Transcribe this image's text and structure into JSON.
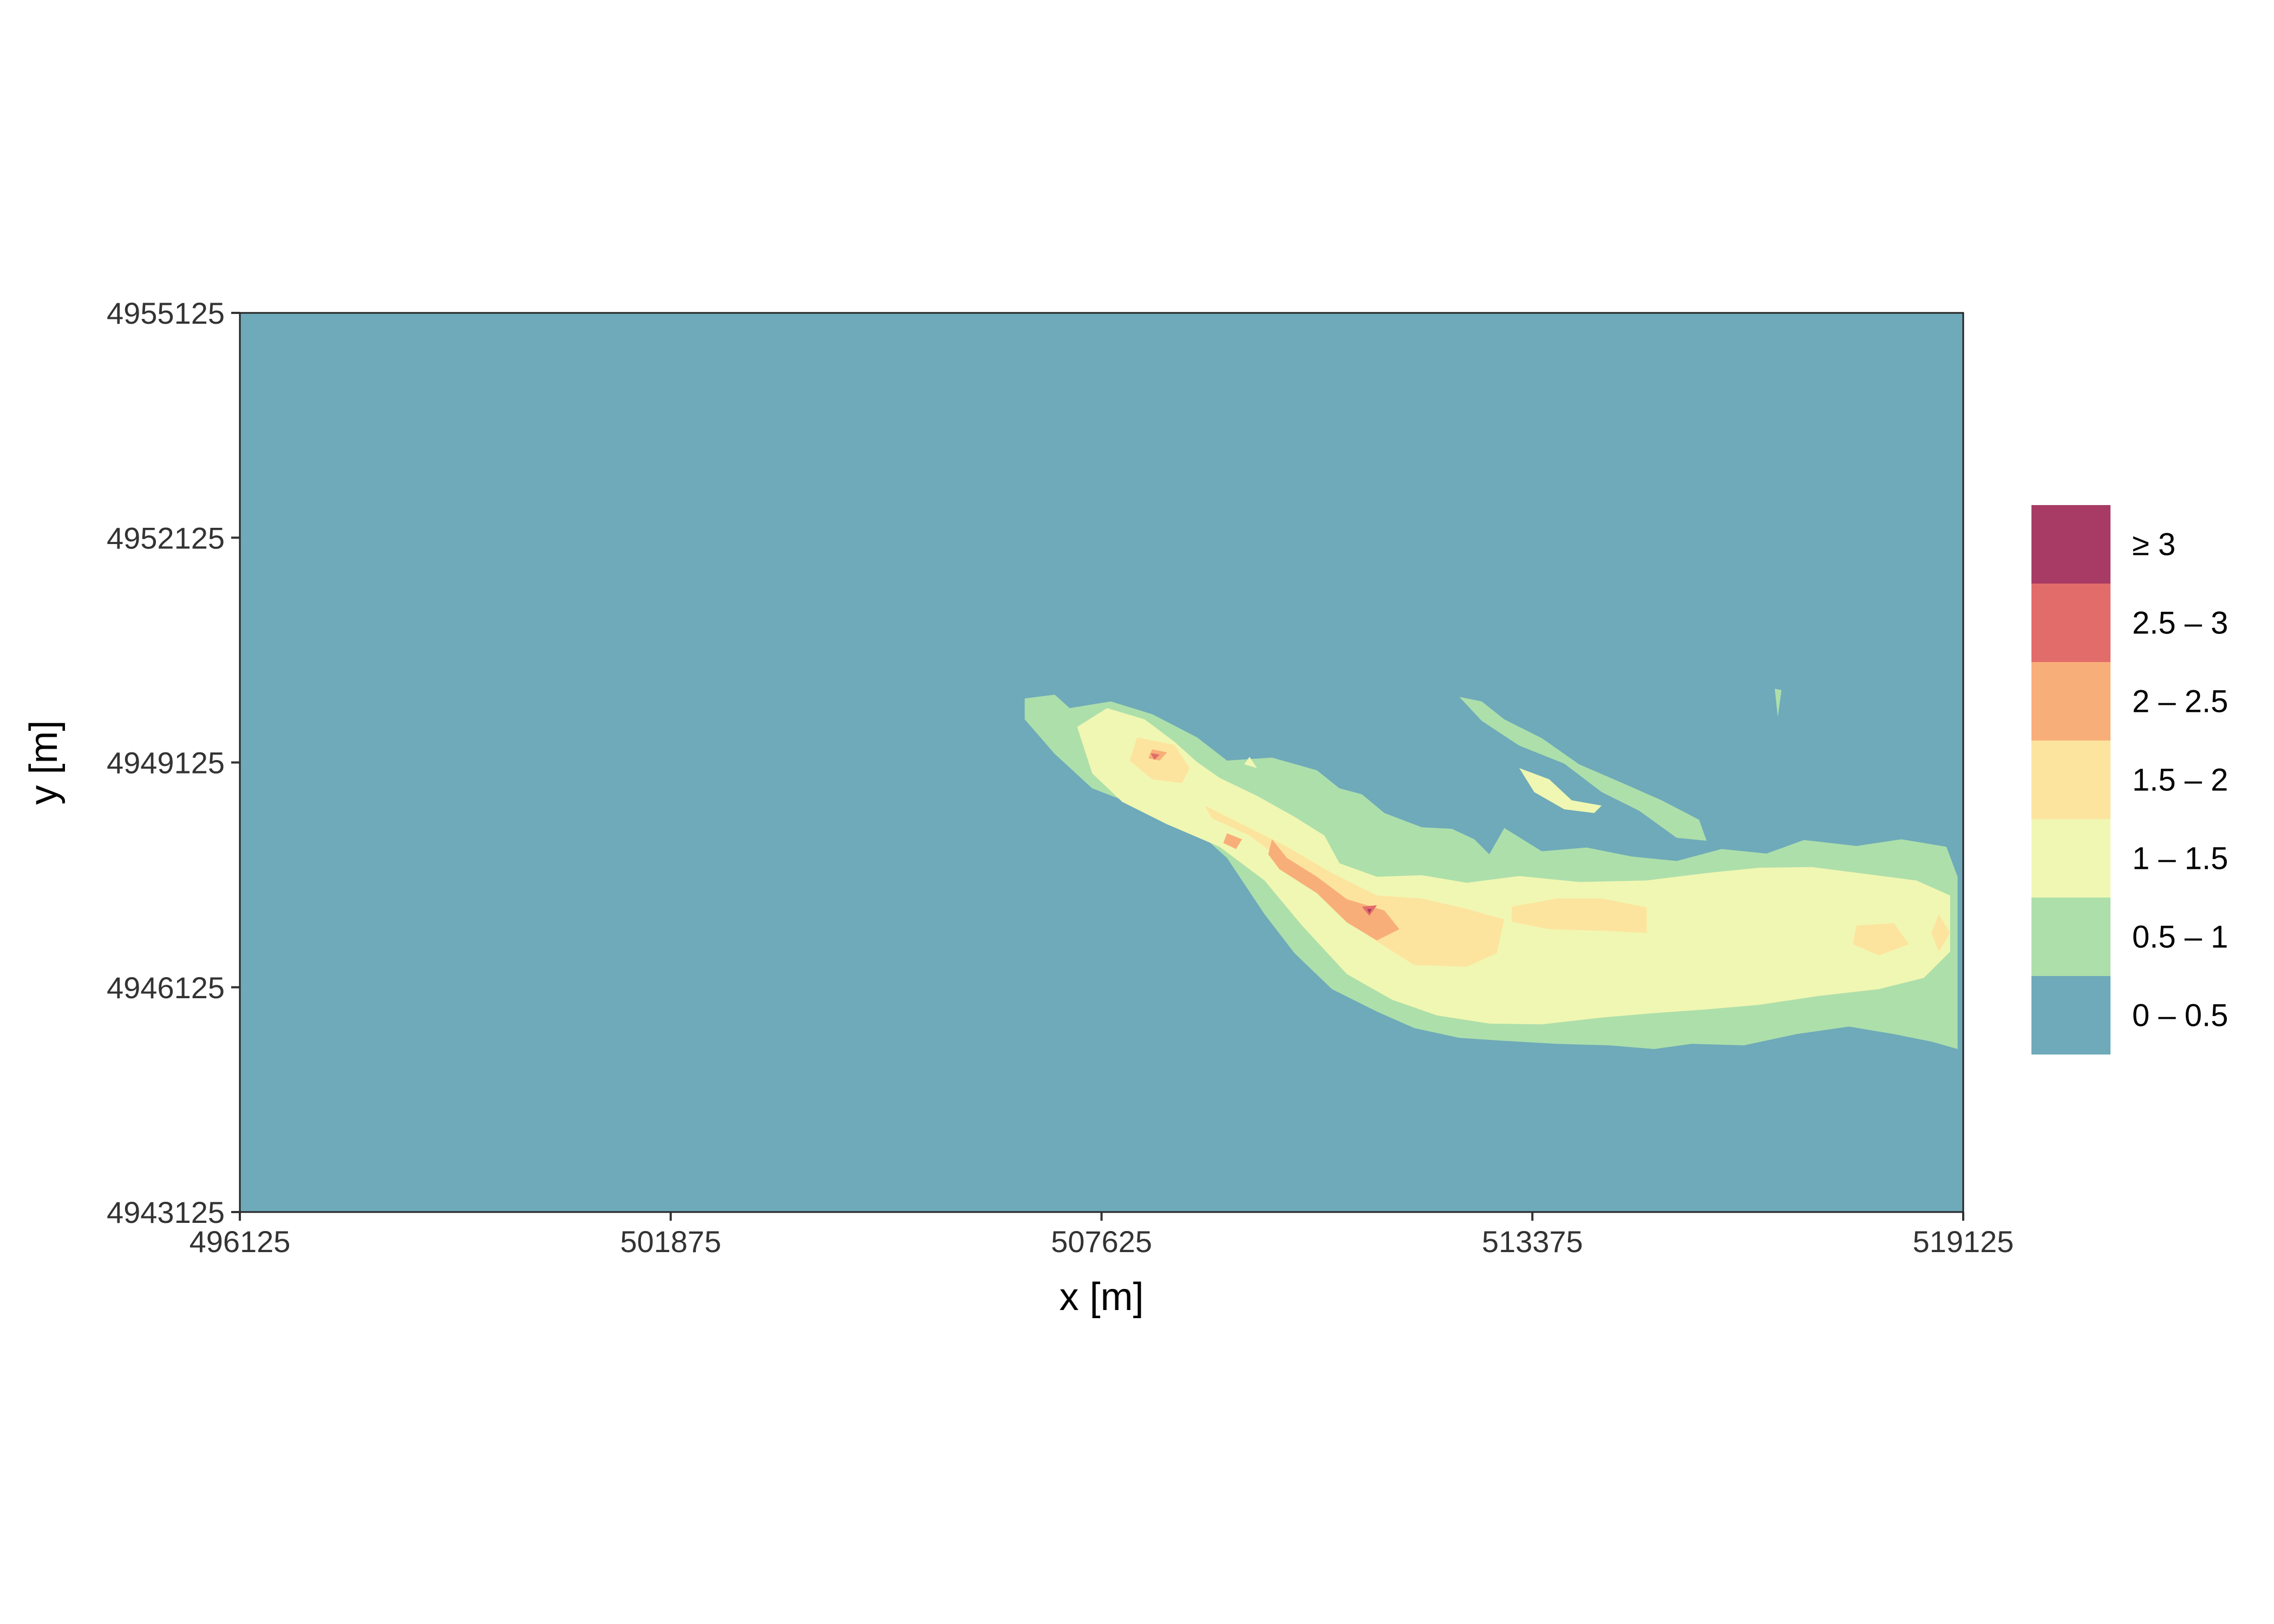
{
  "chart_data": {
    "type": "contour",
    "xlabel": "x [m]",
    "ylabel": "y [m]",
    "xlim": [
      496125,
      519125
    ],
    "ylim": [
      4943125,
      4955125
    ],
    "x_ticks": [
      "496125",
      "501875",
      "507625",
      "513375",
      "519125"
    ],
    "y_ticks": [
      "4943125",
      "4946125",
      "4949125",
      "4952125",
      "4955125"
    ],
    "grid": false,
    "legend_position": "right",
    "background_color": "#6eaab9",
    "legend": [
      {
        "label": "≥ 3",
        "color": "#a83b65"
      },
      {
        "label": "2.5 – 3",
        "color": "#e26c6a"
      },
      {
        "label": "2 – 2.5",
        "color": "#f8ae78"
      },
      {
        "label": "1.5 – 2",
        "color": "#fce49f"
      },
      {
        "label": "1 – 1.5",
        "color": "#f0f7b2"
      },
      {
        "label": "0.5 – 1",
        "color": "#addfab"
      },
      {
        "label": "0 – 0.5",
        "color": "#6eaab9"
      }
    ],
    "levels": [
      {
        "level": "0.5 – 1",
        "color": "#addfab",
        "polygons": [
          [
            [
              506600,
              4949980
            ],
            [
              507000,
              4950030
            ],
            [
              507200,
              4949850
            ],
            [
              507750,
              4949940
            ],
            [
              508300,
              4949770
            ],
            [
              508900,
              4949460
            ],
            [
              509300,
              4949150
            ],
            [
              509900,
              4949190
            ],
            [
              510500,
              4949020
            ],
            [
              510800,
              4948780
            ],
            [
              511100,
              4948700
            ],
            [
              511400,
              4948450
            ],
            [
              511900,
              4948260
            ],
            [
              512300,
              4948240
            ],
            [
              512600,
              4948100
            ],
            [
              512800,
              4947900
            ],
            [
              513000,
              4948250
            ],
            [
              513500,
              4947940
            ],
            [
              514100,
              4947990
            ],
            [
              514700,
              4947870
            ],
            [
              515300,
              4947810
            ],
            [
              515900,
              4947970
            ],
            [
              516500,
              4947910
            ],
            [
              517000,
              4948090
            ],
            [
              517700,
              4948010
            ],
            [
              518300,
              4948100
            ],
            [
              518900,
              4948000
            ],
            [
              519050,
              4947600
            ],
            [
              519050,
              4946800
            ],
            [
              519050,
              4945300
            ],
            [
              518700,
              4945400
            ],
            [
              518200,
              4945500
            ],
            [
              517600,
              4945600
            ],
            [
              516900,
              4945500
            ],
            [
              516200,
              4945350
            ],
            [
              515500,
              4945370
            ],
            [
              515000,
              4945300
            ],
            [
              514400,
              4945350
            ],
            [
              513700,
              4945370
            ],
            [
              513000,
              4945410
            ],
            [
              512400,
              4945450
            ],
            [
              511800,
              4945580
            ],
            [
              511300,
              4945800
            ],
            [
              510700,
              4946100
            ],
            [
              510200,
              4946580
            ],
            [
              509800,
              4947100
            ],
            [
              509300,
              4947850
            ],
            [
              508800,
              4948300
            ],
            [
              508100,
              4948550
            ],
            [
              507500,
              4948780
            ],
            [
              507000,
              4949240
            ],
            [
              506600,
              4949700
            ]
          ],
          [
            [
              512400,
              4950000
            ],
            [
              512700,
              4949680
            ],
            [
              513200,
              4949350
            ],
            [
              513800,
              4949110
            ],
            [
              514300,
              4948730
            ],
            [
              514800,
              4948480
            ],
            [
              515300,
              4948120
            ],
            [
              515700,
              4948080
            ],
            [
              515600,
              4948360
            ],
            [
              515100,
              4948620
            ],
            [
              514600,
              4948840
            ],
            [
              514000,
              4949100
            ],
            [
              513500,
              4949450
            ],
            [
              513000,
              4949700
            ],
            [
              512700,
              4949940
            ]
          ],
          [
            [
              516610,
              4950110
            ],
            [
              516650,
              4949730
            ],
            [
              516700,
              4950090
            ]
          ]
        ]
      },
      {
        "level": "1 – 1.5",
        "color": "#f0f7b2",
        "polygons": [
          [
            [
              507300,
              4949600
            ],
            [
              507700,
              4949850
            ],
            [
              508200,
              4949700
            ],
            [
              508600,
              4949400
            ],
            [
              508900,
              4949130
            ],
            [
              509200,
              4948920
            ],
            [
              509700,
              4948680
            ],
            [
              510200,
              4948400
            ],
            [
              510600,
              4948150
            ],
            [
              510800,
              4947780
            ],
            [
              511300,
              4947600
            ],
            [
              511900,
              4947620
            ],
            [
              512500,
              4947520
            ],
            [
              513200,
              4947610
            ],
            [
              514000,
              4947530
            ],
            [
              514900,
              4947550
            ],
            [
              515700,
              4947650
            ],
            [
              516400,
              4947720
            ],
            [
              517100,
              4947730
            ],
            [
              517800,
              4947640
            ],
            [
              518500,
              4947550
            ],
            [
              518950,
              4947350
            ],
            [
              518950,
              4946600
            ],
            [
              518600,
              4946250
            ],
            [
              518000,
              4946100
            ],
            [
              517200,
              4946010
            ],
            [
              516400,
              4945890
            ],
            [
              515700,
              4945830
            ],
            [
              515000,
              4945780
            ],
            [
              514300,
              4945720
            ],
            [
              513500,
              4945630
            ],
            [
              512800,
              4945640
            ],
            [
              512100,
              4945750
            ],
            [
              511500,
              4945960
            ],
            [
              510900,
              4946300
            ],
            [
              510300,
              4946950
            ],
            [
              509800,
              4947550
            ],
            [
              509200,
              4948000
            ],
            [
              508500,
              4948300
            ],
            [
              507900,
              4948600
            ],
            [
              507500,
              4948980
            ]
          ],
          [
            [
              513200,
              4949050
            ],
            [
              513600,
              4948900
            ],
            [
              513900,
              4948620
            ],
            [
              514300,
              4948550
            ],
            [
              514200,
              4948450
            ],
            [
              513800,
              4948500
            ],
            [
              513400,
              4948730
            ]
          ],
          [
            [
              509600,
              4949200
            ],
            [
              509700,
              4949050
            ],
            [
              509530,
              4949100
            ]
          ]
        ]
      },
      {
        "level": "1.5 – 2",
        "color": "#fce49f",
        "polygons": [
          [
            [
              508100,
              4949460
            ],
            [
              508600,
              4949360
            ],
            [
              508800,
              4949050
            ],
            [
              508700,
              4948850
            ],
            [
              508300,
              4948900
            ],
            [
              508000,
              4949150
            ]
          ],
          [
            [
              509000,
              4948550
            ],
            [
              509500,
              4948300
            ],
            [
              510100,
              4948000
            ],
            [
              510700,
              4947650
            ],
            [
              511300,
              4947350
            ],
            [
              511900,
              4947310
            ],
            [
              512500,
              4947170
            ],
            [
              513000,
              4947030
            ],
            [
              512900,
              4946580
            ],
            [
              512500,
              4946400
            ],
            [
              511800,
              4946420
            ],
            [
              511200,
              4946800
            ],
            [
              510700,
              4947200
            ],
            [
              510200,
              4947700
            ],
            [
              509600,
              4948150
            ],
            [
              509100,
              4948380
            ]
          ],
          [
            [
              513100,
              4947200
            ],
            [
              513700,
              4947310
            ],
            [
              514300,
              4947310
            ],
            [
              514900,
              4947190
            ],
            [
              514900,
              4946850
            ],
            [
              514300,
              4946880
            ],
            [
              513600,
              4946900
            ],
            [
              513100,
              4947000
            ]
          ],
          [
            [
              517700,
              4946950
            ],
            [
              518200,
              4946980
            ],
            [
              518400,
              4946700
            ],
            [
              518000,
              4946550
            ],
            [
              517650,
              4946700
            ]
          ],
          [
            [
              518800,
              4947100
            ],
            [
              518950,
              4946850
            ],
            [
              518800,
              4946600
            ],
            [
              518700,
              4946850
            ]
          ]
        ]
      },
      {
        "level": "2 – 2.5",
        "color": "#f8ae78",
        "polygons": [
          [
            [
              508300,
              4949300
            ],
            [
              508500,
              4949260
            ],
            [
              508400,
              4949150
            ],
            [
              508250,
              4949180
            ]
          ],
          [
            [
              509900,
              4948100
            ],
            [
              510100,
              4947850
            ],
            [
              510500,
              4947600
            ],
            [
              510900,
              4947300
            ],
            [
              511400,
              4947150
            ],
            [
              511600,
              4946900
            ],
            [
              511300,
              4946750
            ],
            [
              510900,
              4946990
            ],
            [
              510500,
              4947380
            ],
            [
              510000,
              4947700
            ],
            [
              509850,
              4947900
            ]
          ],
          [
            [
              509300,
              4948180
            ],
            [
              509500,
              4948100
            ],
            [
              509420,
              4947970
            ],
            [
              509250,
              4948050
            ]
          ]
        ]
      },
      {
        "level": "2.5 – 3",
        "color": "#e26c6a",
        "polygons": [
          [
            [
              508280,
              4949250
            ],
            [
              508400,
              4949230
            ],
            [
              508330,
              4949160
            ]
          ],
          [
            [
              511100,
              4947200
            ],
            [
              511300,
              4947220
            ],
            [
              511200,
              4947080
            ]
          ]
        ]
      },
      {
        "level": "≥ 3",
        "color": "#a83b65",
        "polygons": [
          [
            [
              511170,
              4947170
            ],
            [
              511230,
              4947170
            ],
            [
              511200,
              4947110
            ]
          ]
        ]
      }
    ]
  }
}
